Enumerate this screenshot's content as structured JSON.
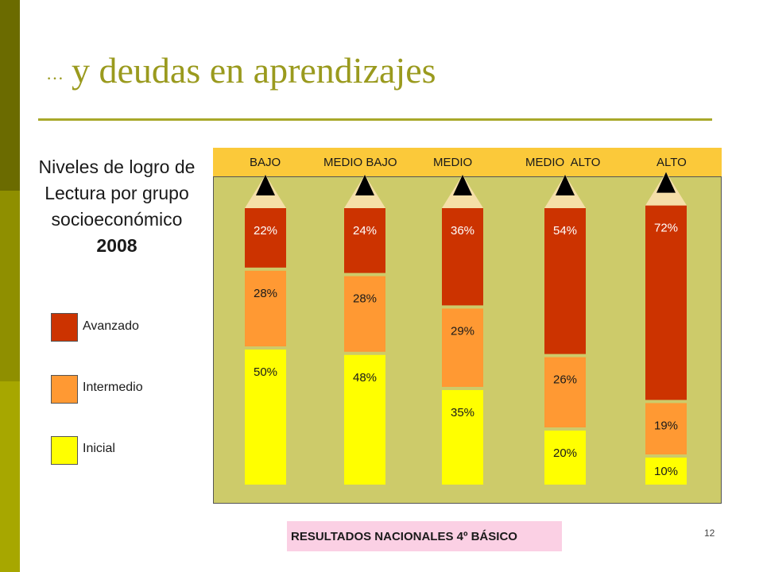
{
  "slide": {
    "title_prefix": "…",
    "title": "y deudas en  aprendizajes",
    "subtitle_line1": "Niveles de logro de",
    "subtitle_line2": "Lectura por grupo",
    "subtitle_line3": "socioeconómico",
    "subtitle_year": "2008",
    "footer": "RESULTADOS NACIONALES  4º BÁSICO",
    "page_number": "12"
  },
  "legend": {
    "items": [
      {
        "label": "Avanzado",
        "color": "#cc3300"
      },
      {
        "label": "Intermedio",
        "color": "#ff9933"
      },
      {
        "label": "Inicial",
        "color": "#ffff00"
      }
    ]
  },
  "chart_data": {
    "type": "bar",
    "stacked": true,
    "categories": [
      "BAJO",
      "MEDIO BAJO",
      "MEDIO",
      "MEDIO  ALTO",
      "ALTO"
    ],
    "series": [
      {
        "name": "Inicial",
        "values": [
          50,
          48,
          35,
          20,
          10
        ],
        "labels": [
          "50%",
          "48%",
          "35%",
          "20%",
          "10%"
        ],
        "color": "#ffff00"
      },
      {
        "name": "Intermedio",
        "values": [
          28,
          28,
          29,
          26,
          19
        ],
        "labels": [
          "28%",
          "28%",
          "29%",
          "26%",
          "19%"
        ],
        "color": "#ff9933"
      },
      {
        "name": "Avanzado",
        "values": [
          22,
          24,
          36,
          54,
          72
        ],
        "labels": [
          "22%",
          "24%",
          "36%",
          "54%",
          "72%"
        ],
        "color": "#cc3300"
      }
    ],
    "ylim": [
      0,
      100
    ],
    "pencil_style": true
  }
}
